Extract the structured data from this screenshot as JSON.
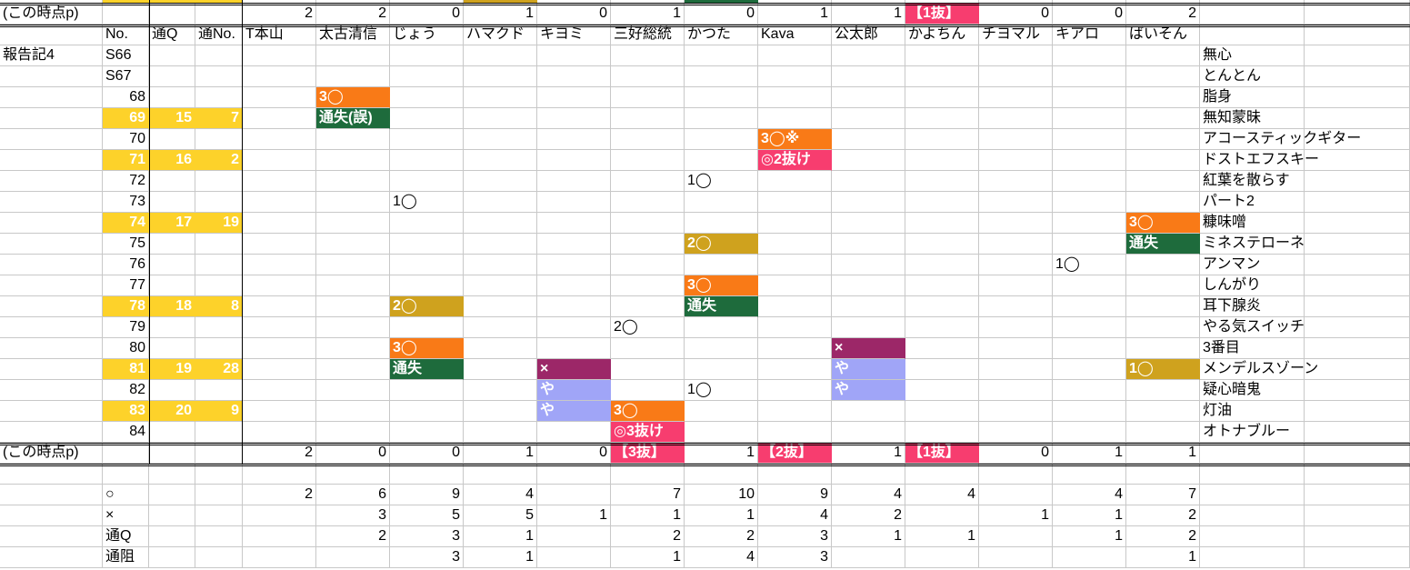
{
  "colors": {
    "orange": "#F97A17",
    "green": "#1E6B3C",
    "gold": "#CFA21E",
    "pink": "#F73D6F",
    "purple": "#9C2768",
    "lavender": "#A0A5F7",
    "yellow": "#FDD22A"
  },
  "top_partial_row": {
    "B": "yellow",
    "C": "yellow",
    "D": "yellow",
    "H": "gold",
    "K": "green"
  },
  "points_label": "(この時点p)",
  "points_top": {
    "E": "2",
    "F": "2",
    "G": "0",
    "H": "1",
    "I": "0",
    "J": "1",
    "K": "0",
    "L": "1",
    "M": "1",
    "N": {
      "text": "【1抜】",
      "color": "pink"
    },
    "O": "0",
    "P": "0",
    "Q": "2"
  },
  "header": {
    "B": "No.",
    "C": "通Q",
    "D": "通No.",
    "E": "T本山",
    "F": "太古清信",
    "G": "じょう",
    "H": "ハマクド",
    "I": "キヨミ",
    "J": "三好総統",
    "K": "かつた",
    "L": "Kava",
    "M": "公太郎",
    "N": "かよちん",
    "O": "チヨマル",
    "P": "キアロ",
    "Q": "ばいそん"
  },
  "section_label": "報告記4",
  "rows": [
    {
      "no": "S66",
      "song": "無心",
      "cells": {}
    },
    {
      "no": "S67",
      "song": "とんとん",
      "cells": {}
    },
    {
      "no": "68",
      "song": "脂身",
      "cells": {
        "F": {
          "text": "3◯",
          "color": "orange"
        }
      }
    },
    {
      "no": "69",
      "q": "15",
      "qno": "7",
      "hl": true,
      "song": "無知蒙昧",
      "cells": {
        "F": {
          "text": "通失(誤)",
          "color": "green"
        }
      }
    },
    {
      "no": "70",
      "song": "アコースティックギター",
      "cells": {
        "L": {
          "text": "3◯※",
          "color": "orange"
        }
      }
    },
    {
      "no": "71",
      "q": "16",
      "qno": "2",
      "hl": true,
      "song": "ドストエフスキー",
      "cells": {
        "L": {
          "text": "◎2抜け",
          "color": "pink"
        }
      }
    },
    {
      "no": "72",
      "song": "紅葉を散らす",
      "cells": {
        "K": {
          "text": "1◯"
        }
      }
    },
    {
      "no": "73",
      "song": "パート2",
      "cells": {
        "G": {
          "text": "1◯"
        }
      }
    },
    {
      "no": "74",
      "q": "17",
      "qno": "19",
      "hl": true,
      "song": "糠味噌",
      "cells": {
        "Q": {
          "text": "3◯",
          "color": "orange"
        }
      }
    },
    {
      "no": "75",
      "song": "ミネステローネ",
      "cells": {
        "K": {
          "text": "2◯",
          "color": "gold"
        },
        "Q": {
          "text": "通失",
          "color": "green"
        }
      }
    },
    {
      "no": "76",
      "song": "アンマン",
      "cells": {
        "P": {
          "text": "1◯"
        }
      }
    },
    {
      "no": "77",
      "song": "しんがり",
      "cells": {
        "K": {
          "text": "3◯",
          "color": "orange"
        }
      }
    },
    {
      "no": "78",
      "q": "18",
      "qno": "8",
      "hl": true,
      "song": "耳下腺炎",
      "cells": {
        "G": {
          "text": "2◯",
          "color": "gold"
        },
        "K": {
          "text": "通失",
          "color": "green"
        }
      }
    },
    {
      "no": "79",
      "song": "やる気スイッチ",
      "cells": {
        "J": {
          "text": "2◯"
        }
      }
    },
    {
      "no": "80",
      "song": "3番目",
      "cells": {
        "G": {
          "text": "3◯",
          "color": "orange"
        },
        "M": {
          "text": "×",
          "color": "purple"
        }
      }
    },
    {
      "no": "81",
      "q": "19",
      "qno": "28",
      "hl": true,
      "song": "メンデルスゾーン",
      "cells": {
        "G": {
          "text": "通失",
          "color": "green"
        },
        "I": {
          "text": "×",
          "color": "purple"
        },
        "M": {
          "text": "や",
          "color": "lavender"
        },
        "Q": {
          "text": "1◯",
          "color": "gold"
        }
      }
    },
    {
      "no": "82",
      "song": "疑心暗鬼",
      "cells": {
        "I": {
          "text": "や",
          "color": "lavender"
        },
        "K": {
          "text": "1◯"
        },
        "M": {
          "text": "や",
          "color": "lavender"
        }
      }
    },
    {
      "no": "83",
      "q": "20",
      "qno": "9",
      "hl": true,
      "song": "灯油",
      "cells": {
        "I": {
          "text": "や",
          "color": "lavender"
        },
        "J": {
          "text": "3◯",
          "color": "orange"
        }
      }
    },
    {
      "no": "84",
      "song": "オトナブルー",
      "cells": {
        "J": {
          "text": "◎3抜け",
          "color": "pink"
        }
      }
    }
  ],
  "points_bottom": {
    "E": "2",
    "F": "0",
    "G": "0",
    "H": "1",
    "I": "0",
    "J": {
      "text": "【3抜】",
      "color": "pink"
    },
    "K": "1",
    "L": {
      "text": "【2抜】",
      "color": "pink"
    },
    "M": "1",
    "N": {
      "text": "【1抜】",
      "color": "pink"
    },
    "O": "0",
    "P": "1",
    "Q": "1"
  },
  "stats": [
    {
      "label": "○",
      "values": {
        "E": "2",
        "F": "6",
        "G": "9",
        "H": "4",
        "J": "7",
        "K": "10",
        "L": "9",
        "M": "4",
        "N": "4",
        "P": "4",
        "Q": "7"
      }
    },
    {
      "label": "×",
      "values": {
        "F": "3",
        "G": "5",
        "H": "5",
        "I": "1",
        "J": "1",
        "K": "1",
        "L": "4",
        "M": "2",
        "O": "1",
        "P": "1",
        "Q": "2"
      }
    },
    {
      "label": "通Q",
      "values": {
        "F": "2",
        "G": "3",
        "H": "1",
        "J": "2",
        "K": "2",
        "L": "3",
        "M": "1",
        "N": "1",
        "P": "1",
        "Q": "2"
      }
    },
    {
      "label": "通阻",
      "values": {
        "G": "3",
        "H": "1",
        "J": "1",
        "K": "4",
        "L": "3",
        "Q": "1"
      }
    }
  ]
}
